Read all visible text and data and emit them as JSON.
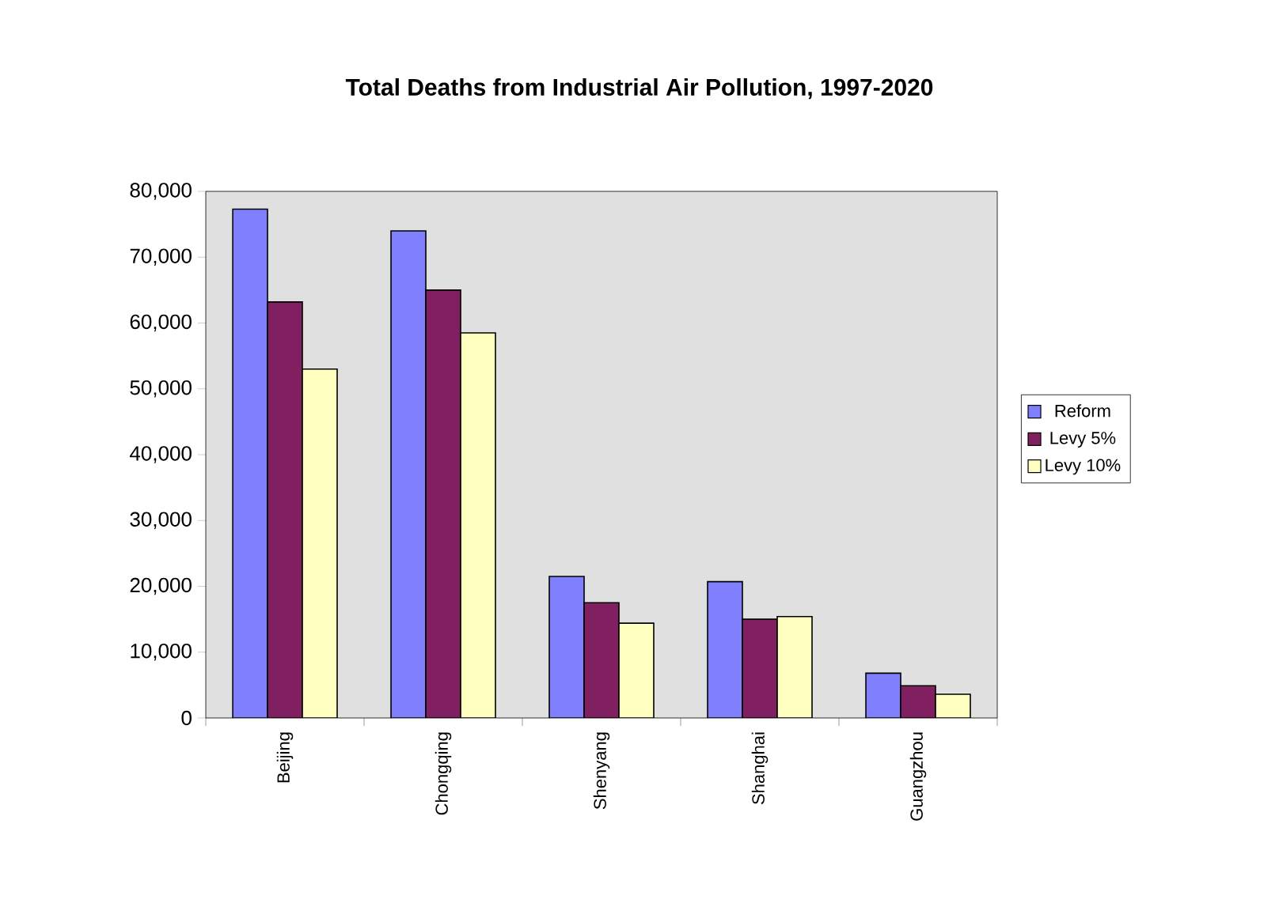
{
  "chart_data": {
    "type": "bar",
    "title": "Total Deaths from Industrial Air Pollution, 1997-2020",
    "categories": [
      "Beijing",
      "Chongqing",
      "Shenyang",
      "Shanghai",
      "Guangzhou"
    ],
    "series": [
      {
        "name": "Reform",
        "color": "#8080ff",
        "values": [
          77300,
          74000,
          21500,
          20700,
          6800
        ]
      },
      {
        "name": "Levy 5%",
        "color": "#802060",
        "values": [
          63200,
          65000,
          17500,
          15000,
          4900
        ]
      },
      {
        "name": "Levy 10%",
        "color": "#ffffc0",
        "values": [
          53000,
          58500,
          14400,
          15400,
          3600
        ]
      }
    ],
    "ylim": [
      0,
      80000
    ],
    "yticks": [
      0,
      {
        "value": 10000,
        "label": "10,000"
      },
      {
        "value": 20000,
        "label": "20,000"
      },
      {
        "value": 30000,
        "label": "30,000"
      },
      {
        "value": 40000,
        "label": "40,000"
      },
      {
        "value": 50000,
        "label": "50,000"
      },
      {
        "value": 60000,
        "label": "60,000"
      },
      {
        "value": 70000,
        "label": "70,000"
      },
      {
        "value": 80000,
        "label": "80,000"
      }
    ],
    "grid": false,
    "legend": "right"
  }
}
